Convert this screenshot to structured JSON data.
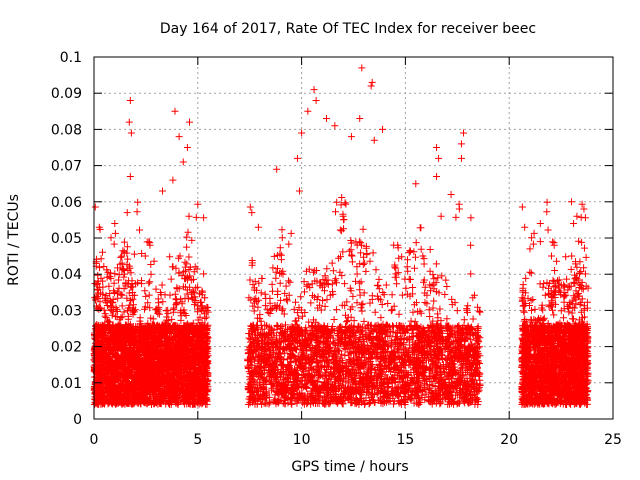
{
  "chart_data": {
    "type": "scatter",
    "title": "Day 164 of 2017, Rate Of TEC Index for receiver beec",
    "xlabel": "GPS time / hours",
    "ylabel": "ROTI / TECUs",
    "xlim": [
      0,
      25
    ],
    "ylim": [
      0,
      0.1
    ],
    "x_ticks": [
      0,
      5,
      10,
      15,
      20,
      25
    ],
    "y_ticks": [
      0,
      0.01,
      0.02,
      0.03,
      0.04,
      0.05,
      0.06,
      0.07,
      0.08,
      0.09,
      0.1
    ],
    "x_tick_labels": [
      "0",
      "5",
      "10",
      "15",
      "20",
      "25"
    ],
    "y_tick_labels": [
      "0",
      "0.01",
      "0.02",
      "0.03",
      "0.04",
      "0.05",
      "0.06",
      "0.07",
      "0.08",
      "0.09",
      "0.1"
    ],
    "grid": true,
    "marker": "plus",
    "color": "#ff0000",
    "coverage_hours": [
      [
        0,
        5.5
      ],
      [
        7.4,
        18.6
      ],
      [
        20.6,
        23.8
      ]
    ],
    "points": [
      [
        1.75,
        0.088
      ],
      [
        1.7,
        0.082
      ],
      [
        1.8,
        0.079
      ],
      [
        1.75,
        0.067
      ],
      [
        3.9,
        0.085
      ],
      [
        4.1,
        0.078
      ],
      [
        4.6,
        0.082
      ],
      [
        4.5,
        0.075
      ],
      [
        4.3,
        0.071
      ],
      [
        3.8,
        0.066
      ],
      [
        3.3,
        0.063
      ],
      [
        1.0,
        0.054
      ],
      [
        1.6,
        0.057
      ],
      [
        8.8,
        0.069
      ],
      [
        10.6,
        0.091
      ],
      [
        10.7,
        0.088
      ],
      [
        10.3,
        0.085
      ],
      [
        11.6,
        0.081
      ],
      [
        10.0,
        0.079
      ],
      [
        11.2,
        0.083
      ],
      [
        12.8,
        0.083
      ],
      [
        13.4,
        0.093
      ],
      [
        13.35,
        0.092
      ],
      [
        12.9,
        0.097
      ],
      [
        13.9,
        0.08
      ],
      [
        13.5,
        0.077
      ],
      [
        12.4,
        0.078
      ],
      [
        9.8,
        0.072
      ],
      [
        16.5,
        0.075
      ],
      [
        16.6,
        0.072
      ],
      [
        16.5,
        0.067
      ],
      [
        17.8,
        0.079
      ],
      [
        17.7,
        0.076
      ],
      [
        17.7,
        0.072
      ],
      [
        17.2,
        0.062
      ],
      [
        17.6,
        0.058
      ],
      [
        7.6,
        0.057
      ],
      [
        9.9,
        0.063
      ],
      [
        15.5,
        0.065
      ],
      [
        21.5,
        0.054
      ],
      [
        23.0,
        0.06
      ],
      [
        23.6,
        0.058
      ],
      [
        23.1,
        0.054
      ],
      [
        21.0,
        0.047
      ],
      [
        21.5,
        0.049
      ]
    ]
  }
}
